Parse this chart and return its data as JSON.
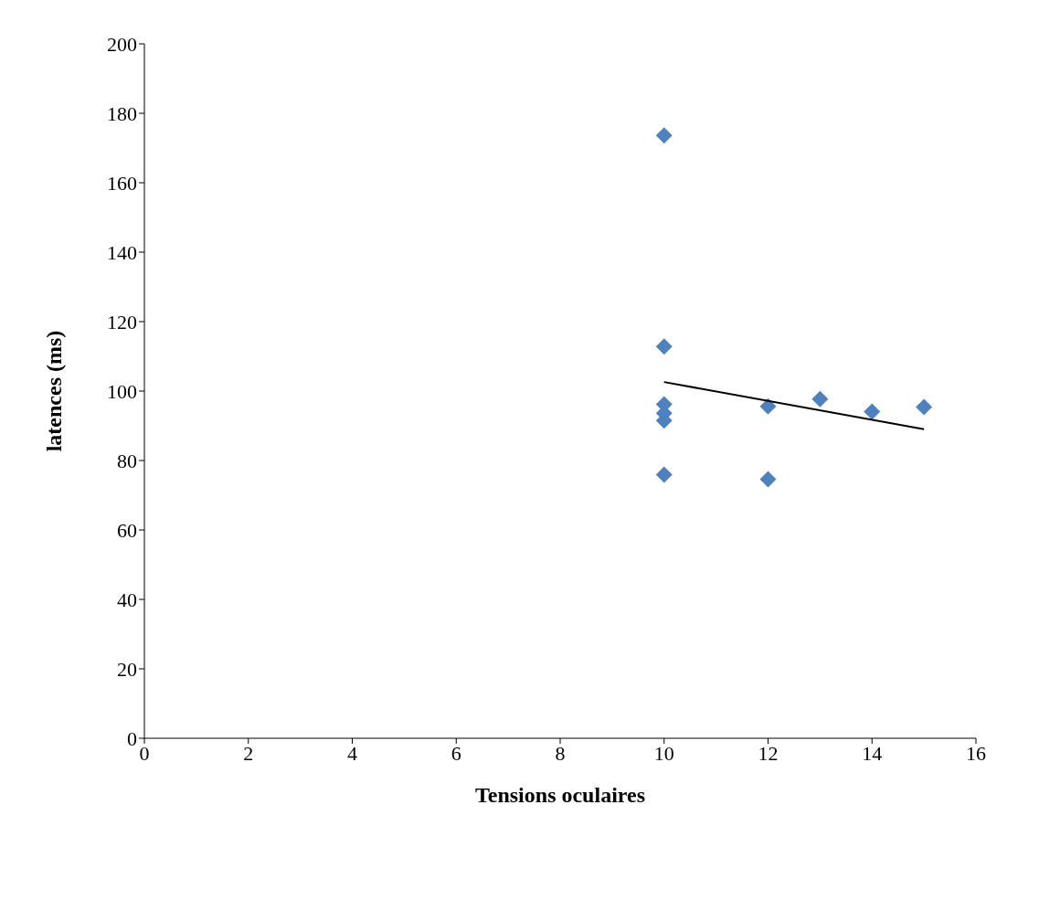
{
  "chart_data": {
    "type": "scatter",
    "xlabel": "Tensions oculaires",
    "ylabel": "latences (ms)",
    "xlim": [
      0,
      16
    ],
    "xticks": [
      0,
      2,
      4,
      6,
      8,
      10,
      12,
      14,
      16
    ],
    "ylim": [
      0,
      200
    ],
    "yticks": [
      0,
      20,
      40,
      60,
      80,
      100,
      120,
      140,
      160,
      180,
      200
    ],
    "grid": false,
    "legend": false,
    "marker": "diamond",
    "series": [
      {
        "color": "#4f81bd",
        "x": [
          10,
          10,
          10,
          10,
          10,
          10,
          12,
          12,
          13,
          14,
          15
        ],
        "values": [
          173.6,
          112.8,
          96.2,
          93.6,
          91.5,
          75.9,
          95.6,
          74.6,
          97.7,
          94.1,
          95.4
        ]
      },
      {
        "type": "line",
        "color": "#000000",
        "x": [
          10,
          15
        ],
        "values": [
          102.6,
          89.0
        ],
        "marker": "none",
        "line_style": "solid"
      }
    ]
  }
}
